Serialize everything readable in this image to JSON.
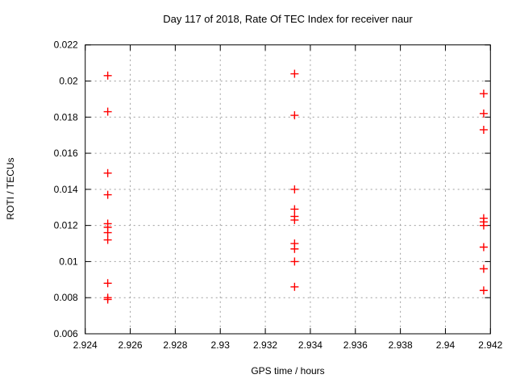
{
  "chart_data": {
    "type": "scatter",
    "title": "Day 117 of 2018, Rate Of TEC Index for receiver naur",
    "xlabel": "GPS time / hours",
    "ylabel": "ROTI / TECUs",
    "xlim": [
      2.924,
      2.942
    ],
    "ylim": [
      0.006,
      0.022
    ],
    "x_ticks": [
      2.924,
      2.926,
      2.928,
      2.93,
      2.932,
      2.934,
      2.936,
      2.938,
      2.94,
      2.942
    ],
    "x_tick_labels": [
      "2.924",
      "2.926",
      "2.928",
      "2.93",
      "2.932",
      "2.934",
      "2.936",
      "2.938",
      "2.94",
      "2.942"
    ],
    "y_ticks": [
      0.006,
      0.008,
      0.01,
      0.012,
      0.014,
      0.016,
      0.018,
      0.02,
      0.022
    ],
    "y_tick_labels": [
      "0.006",
      "0.008",
      "0.01",
      "0.012",
      "0.014",
      "0.016",
      "0.018",
      "0.02",
      "0.022"
    ],
    "grid": true,
    "legend": "none",
    "series": [
      {
        "name": "ROTI",
        "marker": "plus",
        "color": "#ff0000",
        "points": [
          [
            2.925,
            0.0203
          ],
          [
            2.925,
            0.0183
          ],
          [
            2.925,
            0.0149
          ],
          [
            2.925,
            0.0137
          ],
          [
            2.925,
            0.0121
          ],
          [
            2.925,
            0.0119
          ],
          [
            2.925,
            0.0116
          ],
          [
            2.925,
            0.0112
          ],
          [
            2.925,
            0.0088
          ],
          [
            2.925,
            0.008
          ],
          [
            2.925,
            0.0079
          ],
          [
            2.9333,
            0.0204
          ],
          [
            2.9333,
            0.0181
          ],
          [
            2.9333,
            0.014
          ],
          [
            2.9333,
            0.0129
          ],
          [
            2.9333,
            0.0125
          ],
          [
            2.9333,
            0.0123
          ],
          [
            2.9333,
            0.011
          ],
          [
            2.9333,
            0.0107
          ],
          [
            2.9333,
            0.01
          ],
          [
            2.9333,
            0.0086
          ],
          [
            2.9417,
            0.0193
          ],
          [
            2.9417,
            0.0182
          ],
          [
            2.9417,
            0.0173
          ],
          [
            2.9417,
            0.0124
          ],
          [
            2.9417,
            0.0122
          ],
          [
            2.9417,
            0.012
          ],
          [
            2.9417,
            0.0108
          ],
          [
            2.9417,
            0.0096
          ],
          [
            2.9417,
            0.0084
          ]
        ]
      }
    ],
    "colors": {
      "marker": "#ff0000",
      "border": "#000000",
      "grid": "#9e9e9e",
      "background": "#ffffff"
    }
  }
}
